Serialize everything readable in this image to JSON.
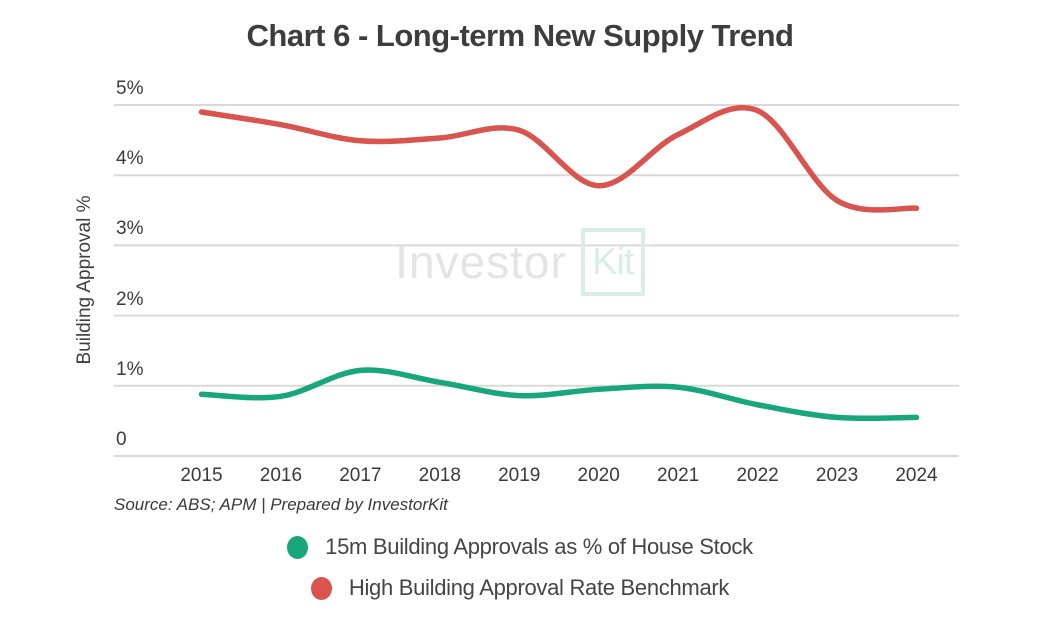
{
  "title": "Chart 6 - Long-term New Supply Trend",
  "source": "Source: ABS; APM | Prepared by InvestorKit",
  "watermark": {
    "part1": "Investor",
    "part2": "Kit"
  },
  "colors": {
    "green_series": "#17a77b",
    "red_series": "#d9534f",
    "gridline": "#d9d9d9",
    "text": "#3d3d3d",
    "watermark_gray": "#e4e4e4",
    "watermark_mint": "#d9efe4"
  },
  "chart_data": {
    "type": "line",
    "title": "Chart 6 - Long-term New Supply Trend",
    "x": [
      "2015",
      "2016",
      "2017",
      "2018",
      "2019",
      "2020",
      "2021",
      "2022",
      "2023",
      "2024"
    ],
    "xlabel": "",
    "ylabel": "Building Approval %",
    "ylim": [
      0,
      5
    ],
    "y_tick_labels": [
      "0",
      "1%",
      "2%",
      "3%",
      "4%",
      "5%"
    ],
    "grid": "horizontal",
    "legend_position": "bottom",
    "series": [
      {
        "name": "15m Building Approvals as % of House Stock",
        "color": "#17a77b",
        "values": [
          0.88,
          0.85,
          1.22,
          1.05,
          0.86,
          0.95,
          0.98,
          0.73,
          0.55,
          0.55
        ]
      },
      {
        "name": "High Building Approval Rate Benchmark",
        "color": "#d9534f",
        "values": [
          4.9,
          4.72,
          4.49,
          4.53,
          4.64,
          3.85,
          4.58,
          4.92,
          3.64,
          3.53
        ]
      }
    ]
  }
}
